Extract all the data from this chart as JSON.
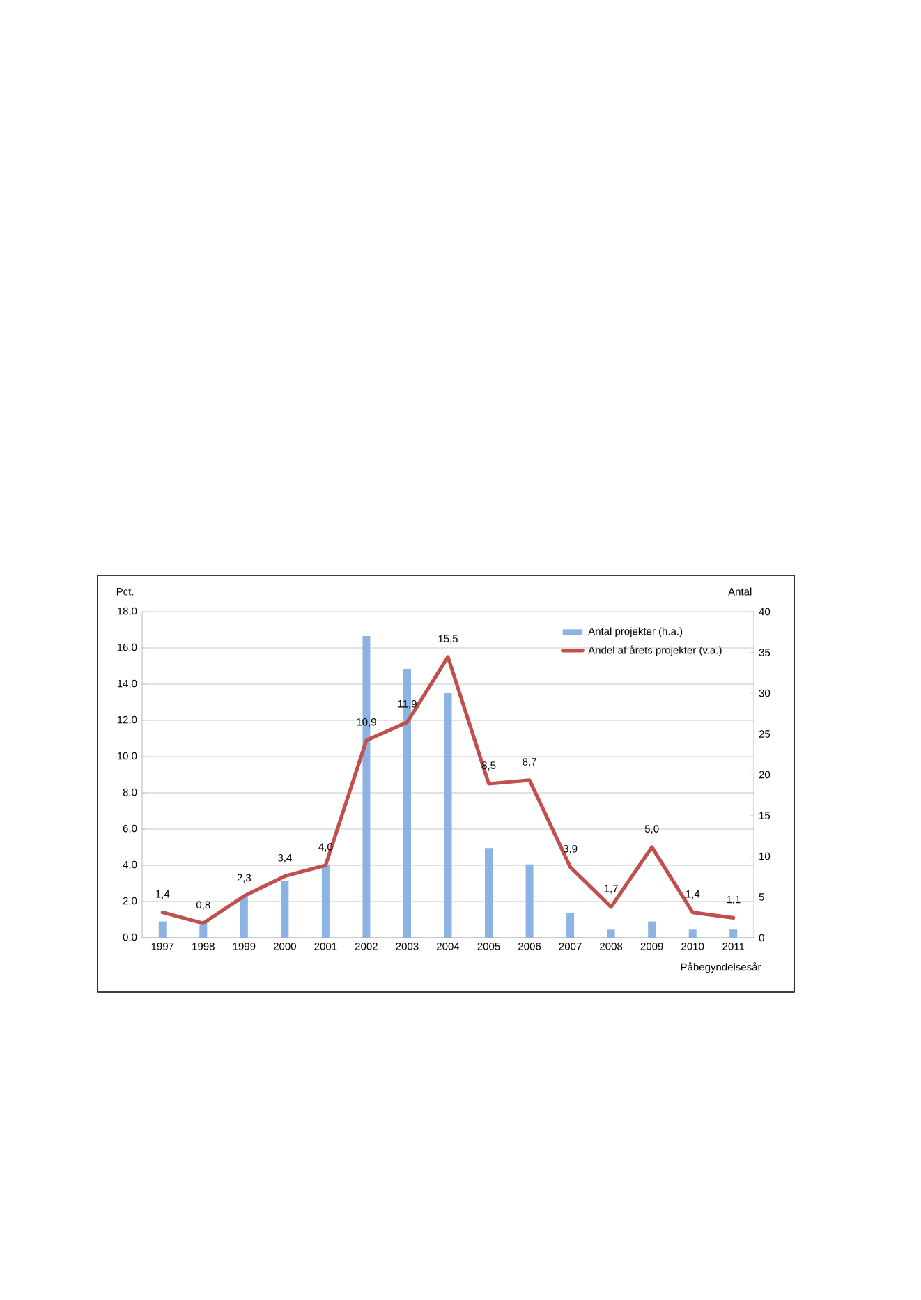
{
  "chart_data": {
    "type": "bar",
    "xlabel": "Påbegyndelsesår",
    "ylabel": "Pct.",
    "y2label": "Antal",
    "categories": [
      "1997",
      "1998",
      "1999",
      "2000",
      "2001",
      "2002",
      "2003",
      "2004",
      "2005",
      "2006",
      "2007",
      "2008",
      "2009",
      "2010",
      "2011"
    ],
    "series": [
      {
        "name": "Antal projekter (h.a.)",
        "axis": "y2",
        "color": "#8db3e2",
        "values": [
          2,
          2,
          5,
          7,
          9,
          37,
          33,
          30,
          11,
          9,
          3,
          1,
          2,
          1,
          1
        ]
      },
      {
        "name": "Andel af årets projekter (v.a.)",
        "type": "line",
        "color": "#c0504d",
        "values": [
          1.4,
          0.8,
          2.3,
          3.4,
          4.0,
          10.9,
          11.9,
          15.5,
          8.5,
          8.7,
          3.9,
          1.7,
          5.0,
          1.4,
          1.1
        ],
        "value_labels": [
          "1,4",
          "0,8",
          "2,3",
          "3,4",
          "4,0",
          "10,9",
          "11,9",
          "15,5",
          "8,5",
          "8,7",
          "3,9",
          "1,7",
          "5,0",
          "1,4",
          "1,1"
        ]
      }
    ],
    "ylim": [
      0,
      18
    ],
    "yticks": [
      {
        "value": 0,
        "label": "0,0"
      },
      {
        "value": 2,
        "label": "2,0"
      },
      {
        "value": 4,
        "label": "4,0"
      },
      {
        "value": 6,
        "label": "6,0"
      },
      {
        "value": 8,
        "label": "8,0"
      },
      {
        "value": 10,
        "label": "10,0"
      },
      {
        "value": 12,
        "label": "12,0"
      },
      {
        "value": 14,
        "label": "14,0"
      },
      {
        "value": 16,
        "label": "16,0"
      },
      {
        "value": 18,
        "label": "18,0"
      }
    ],
    "y2lim": [
      0,
      40
    ],
    "y2ticks": [
      0,
      5,
      10,
      15,
      20,
      25,
      30,
      35,
      40
    ],
    "grid": "y",
    "legend": "top right"
  }
}
